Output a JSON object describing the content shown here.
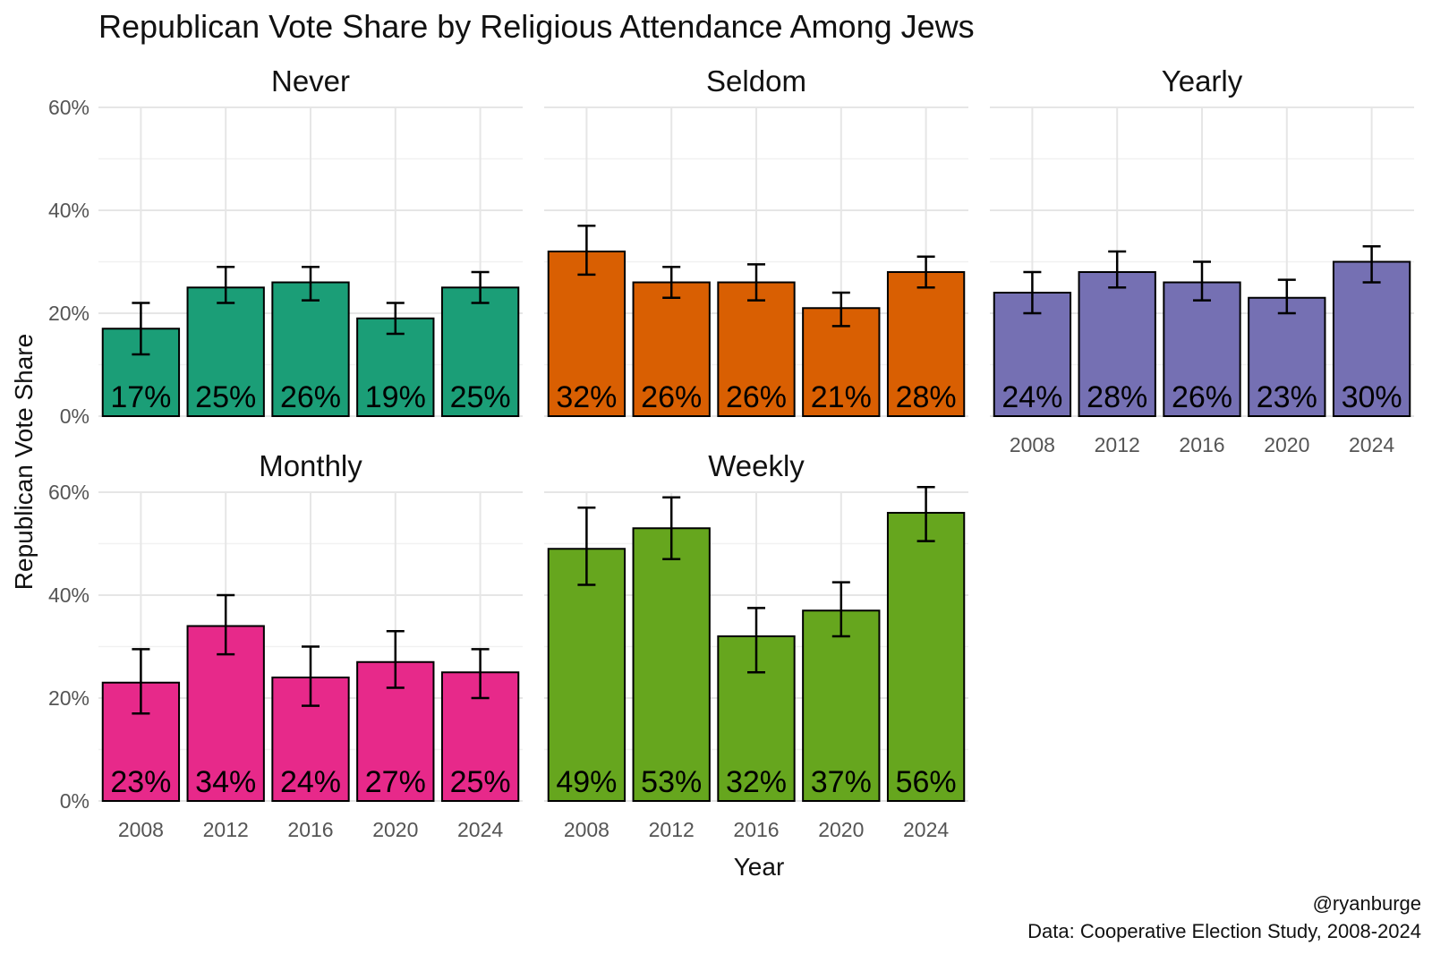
{
  "chart_data": {
    "type": "bar",
    "title": "Republican Vote Share by Religious Attendance Among Jews",
    "xlabel": "Year",
    "ylabel": "Republican Vote Share",
    "categories": [
      "2008",
      "2012",
      "2016",
      "2020",
      "2024"
    ],
    "ylim": [
      0,
      0.6
    ],
    "y_ticks": [
      "0%",
      "20%",
      "40%",
      "60%"
    ],
    "grid": true,
    "caption": [
      "@ryanburge",
      "Data: Cooperative Election Study, 2008-2024"
    ],
    "facets": [
      {
        "name": "Never",
        "color": "#1b9e77",
        "values": [
          0.17,
          0.25,
          0.26,
          0.19,
          0.25
        ],
        "labels": [
          "17%",
          "25%",
          "26%",
          "19%",
          "25%"
        ],
        "ci_low": [
          0.12,
          0.22,
          0.225,
          0.16,
          0.22
        ],
        "ci_high": [
          0.22,
          0.29,
          0.29,
          0.22,
          0.28
        ]
      },
      {
        "name": "Seldom",
        "color": "#d95f02",
        "values": [
          0.32,
          0.26,
          0.26,
          0.21,
          0.28
        ],
        "labels": [
          "32%",
          "26%",
          "26%",
          "21%",
          "28%"
        ],
        "ci_low": [
          0.275,
          0.23,
          0.225,
          0.175,
          0.25
        ],
        "ci_high": [
          0.37,
          0.29,
          0.295,
          0.24,
          0.31
        ]
      },
      {
        "name": "Yearly",
        "color": "#7570b3",
        "values": [
          0.24,
          0.28,
          0.26,
          0.23,
          0.3
        ],
        "labels": [
          "24%",
          "28%",
          "26%",
          "23%",
          "30%"
        ],
        "ci_low": [
          0.2,
          0.25,
          0.225,
          0.2,
          0.26
        ],
        "ci_high": [
          0.28,
          0.32,
          0.3,
          0.265,
          0.33
        ]
      },
      {
        "name": "Monthly",
        "color": "#e7298a",
        "values": [
          0.23,
          0.34,
          0.24,
          0.27,
          0.25
        ],
        "labels": [
          "23%",
          "34%",
          "24%",
          "27%",
          "25%"
        ],
        "ci_low": [
          0.17,
          0.285,
          0.185,
          0.22,
          0.2
        ],
        "ci_high": [
          0.295,
          0.4,
          0.3,
          0.33,
          0.295
        ]
      },
      {
        "name": "Weekly",
        "color": "#66a61e",
        "values": [
          0.49,
          0.53,
          0.32,
          0.37,
          0.56
        ],
        "labels": [
          "49%",
          "53%",
          "32%",
          "37%",
          "56%"
        ],
        "ci_low": [
          0.42,
          0.47,
          0.25,
          0.32,
          0.505
        ],
        "ci_high": [
          0.57,
          0.59,
          0.375,
          0.425,
          0.61
        ]
      }
    ]
  }
}
